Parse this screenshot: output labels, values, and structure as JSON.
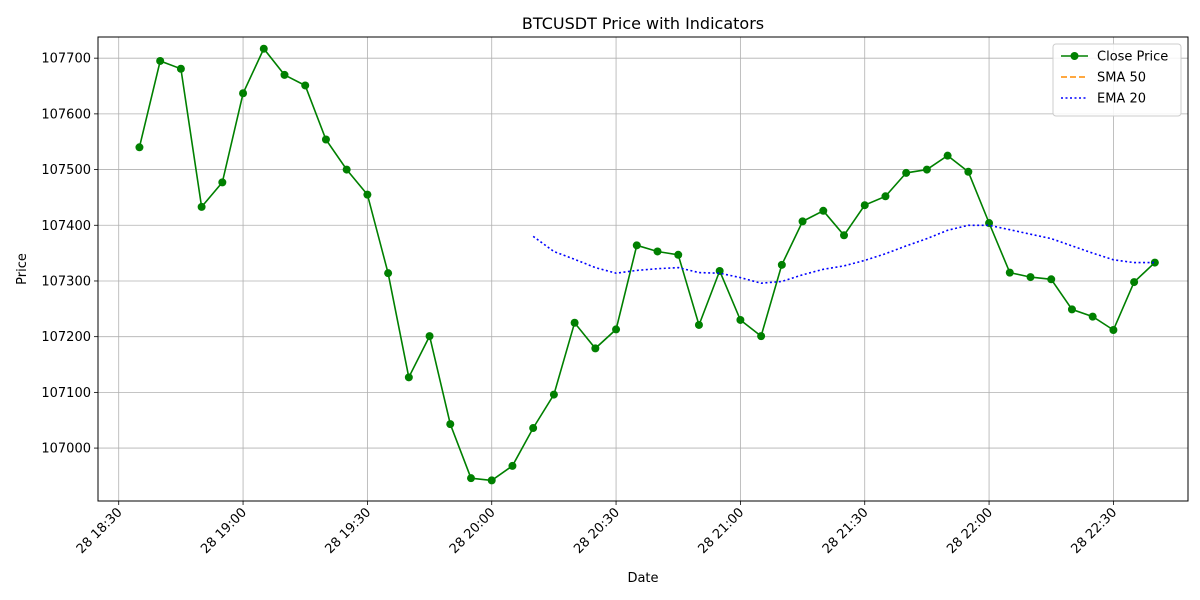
{
  "chart_data": {
    "type": "line",
    "title": "BTCUSDT Price with Indicators",
    "xlabel": "Date",
    "ylabel": "Price",
    "legend_position": "top-right",
    "grid": true,
    "x_start": "2025-06-28 18:35",
    "x_step_minutes": 5,
    "xlim": [
      "2025-06-28 18:25",
      "2025-06-28 22:48"
    ],
    "ylim": [
      106905,
      107738
    ],
    "x_ticks": [
      "28 18:30",
      "28 19:00",
      "28 19:30",
      "28 20:00",
      "28 20:30",
      "28 21:00",
      "28 21:30",
      "28 22:00",
      "28 22:30"
    ],
    "y_ticks": [
      107000,
      107100,
      107200,
      107300,
      107400,
      107500,
      107600,
      107700
    ],
    "series": [
      {
        "name": "Close Price",
        "color": "#008000",
        "style": "solid-with-circles",
        "values": [
          107540,
          107695,
          107681,
          107433,
          107477,
          107637,
          107717,
          107670,
          107651,
          107554,
          107500,
          107455,
          107314,
          107127,
          107201,
          107043,
          106946,
          106942,
          106968,
          107036,
          107096,
          107225,
          107179,
          107213,
          107364,
          107353,
          107347,
          107221,
          107318,
          107230,
          107201,
          107329,
          107407,
          107426,
          107382,
          107436,
          107452,
          107494,
          107500,
          107525,
          107496,
          107404,
          107315,
          107307,
          107303,
          107249,
          107236,
          107212,
          107298,
          107333
        ]
      },
      {
        "name": "SMA 50",
        "color": "#ff8c00",
        "style": "dashed",
        "values": []
      },
      {
        "name": "EMA 20",
        "color": "#0000ff",
        "style": "dotted",
        "start_index": 19,
        "values": [
          107380,
          107353,
          107339,
          107324,
          107314,
          107319,
          107322,
          107324,
          107315,
          107314,
          107306,
          107296,
          107299,
          107311,
          107321,
          107327,
          107337,
          107349,
          107363,
          107376,
          107391,
          107400,
          107400,
          107392,
          107384,
          107376,
          107363,
          107350,
          107338,
          107333,
          107333
        ]
      }
    ]
  }
}
